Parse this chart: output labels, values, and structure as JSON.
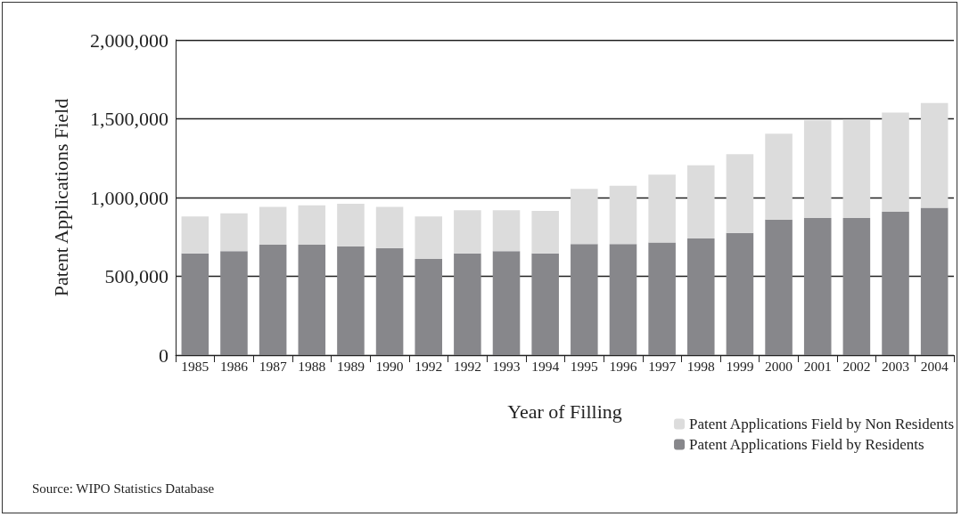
{
  "chart_data": {
    "type": "bar",
    "stacked": true,
    "xlabel": "Year of Filling",
    "ylabel": "Patent Applications Field",
    "categories": [
      "1985",
      "1986",
      "1987",
      "1988",
      "1989",
      "1990",
      "1992",
      "1992",
      "1993",
      "1994",
      "1995",
      "1996",
      "1997",
      "1998",
      "1999",
      "2000",
      "2001",
      "2002",
      "2003",
      "2004"
    ],
    "series": [
      {
        "name": "Patent Applications Field by Residents",
        "color": "#87878b",
        "values": [
          645000,
          660000,
          700000,
          700000,
          690000,
          680000,
          610000,
          645000,
          660000,
          645000,
          705000,
          705000,
          715000,
          740000,
          775000,
          860000,
          870000,
          870000,
          910000,
          935000
        ]
      },
      {
        "name": "Patent Applications Field by Non Residents",
        "color": "#dcdcdc",
        "values": [
          235000,
          240000,
          240000,
          250000,
          270000,
          260000,
          270000,
          275000,
          260000,
          270000,
          350000,
          370000,
          430000,
          465000,
          500000,
          545000,
          620000,
          625000,
          630000,
          665000
        ]
      }
    ],
    "ylim": [
      0,
      2000000
    ],
    "yticks": [
      0,
      {
        "value": 500000,
        "label": "500,000"
      },
      {
        "value": 1000000,
        "label": "1,000,000"
      },
      {
        "value": 1500000,
        "label": "1,500,000"
      },
      {
        "value": 2000000,
        "label": "2,000,000"
      }
    ],
    "grid": "y",
    "legend": "bottom right",
    "annotations": [
      "Source: WIPO Statistics Database"
    ]
  }
}
